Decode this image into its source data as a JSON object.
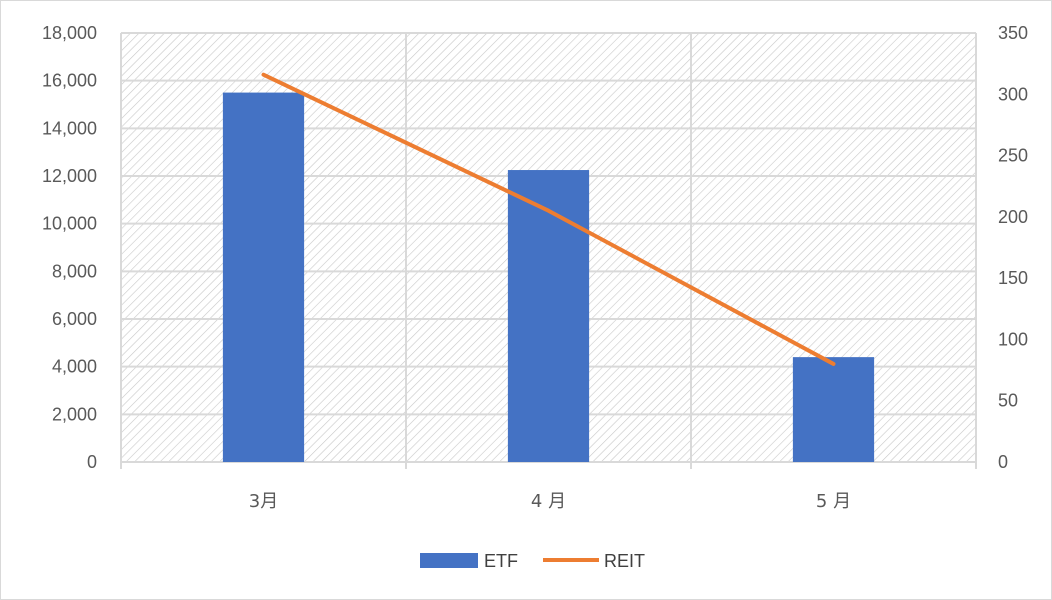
{
  "chart_data": {
    "type": "bar",
    "categories": [
      "3月",
      "4 月",
      "5 月"
    ],
    "series": [
      {
        "name": "ETF",
        "type": "bar",
        "axis": "left",
        "color": "#4472c4",
        "values": [
          15500,
          12250,
          4400
        ]
      },
      {
        "name": "REIT",
        "type": "line",
        "axis": "right",
        "color": "#ed7d31",
        "values": [
          316,
          205,
          80
        ]
      }
    ],
    "y_left": {
      "min": 0,
      "max": 18000,
      "step": 2000,
      "tick_labels": [
        "0",
        "2,000",
        "4,000",
        "6,000",
        "8,000",
        "10,000",
        "12,000",
        "14,000",
        "16,000",
        "18,000"
      ]
    },
    "y_right": {
      "min": 0,
      "max": 350,
      "step": 50,
      "tick_labels": [
        "0",
        "50",
        "100",
        "150",
        "200",
        "250",
        "300",
        "350"
      ]
    },
    "grid": true,
    "plot_pattern": "diagonal-hatch",
    "legend": {
      "position": "bottom",
      "items": [
        "ETF",
        "REIT"
      ]
    }
  }
}
